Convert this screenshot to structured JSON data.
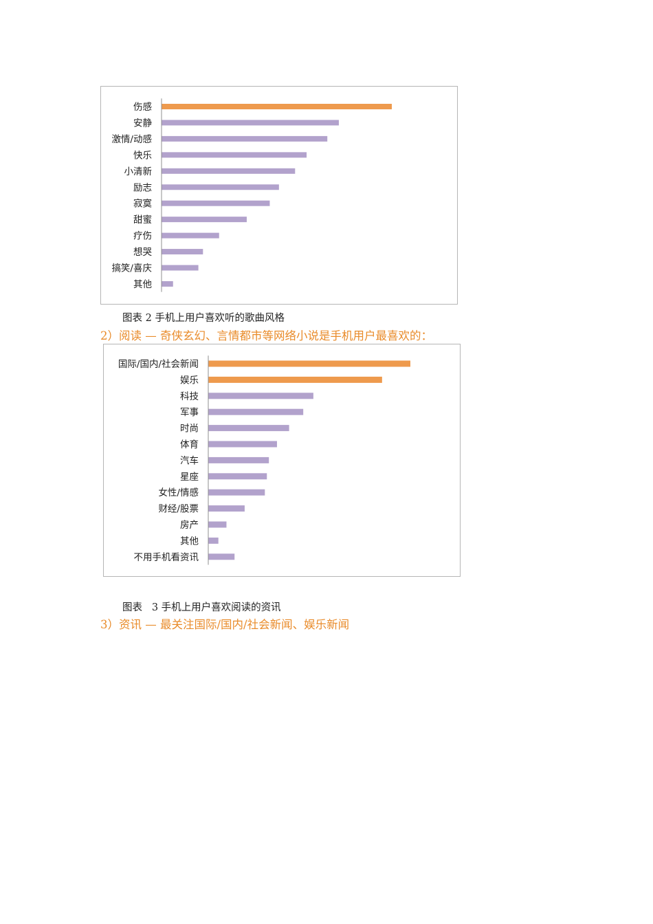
{
  "colors": {
    "highlight": "#ee9a4d",
    "bar": "#b2a2cc",
    "heading": "#e98b2a",
    "frame": "#b5b5b5"
  },
  "chart_data": [
    {
      "type": "bar",
      "orientation": "horizontal",
      "categories": [
        "伤感",
        "安静",
        "激情/动感",
        "快乐",
        "小清新",
        "励志",
        "寂寞",
        "甜蜜",
        "疗伤",
        "想哭",
        "搞笑/喜庆",
        "其他"
      ],
      "values": [
        100,
        77,
        72,
        63,
        58,
        51,
        47,
        37,
        25,
        18,
        16,
        5
      ],
      "highlighted": [
        true,
        false,
        false,
        false,
        false,
        false,
        false,
        false,
        false,
        false,
        false,
        false
      ],
      "xlim": [
        0,
        100
      ]
    },
    {
      "type": "bar",
      "orientation": "horizontal",
      "categories": [
        "国际/国内/社会新闻",
        "娱乐",
        "科技",
        "军事",
        "时尚",
        "体育",
        "汽车",
        "星座",
        "女性/情感",
        "财经/股票",
        "房产",
        "其他",
        "不用手机看资讯"
      ],
      "values": [
        100,
        86,
        52,
        47,
        40,
        34,
        30,
        29,
        28,
        18,
        9,
        5,
        13
      ],
      "highlighted": [
        true,
        true,
        false,
        false,
        false,
        false,
        false,
        false,
        false,
        false,
        false,
        false,
        false
      ],
      "xlim": [
        0,
        100
      ]
    }
  ],
  "caption1": "图表 2 手机上用户喜欢听的歌曲风格",
  "heading1": "2）阅读 — 奇侠玄幻、言情都市等网络小说是手机用户最喜欢的：",
  "caption2": "图表   3 手机上用户喜欢阅读的资讯",
  "heading2": "3）资讯 — 最关注国际/国内/社会新闻、娱乐新闻"
}
